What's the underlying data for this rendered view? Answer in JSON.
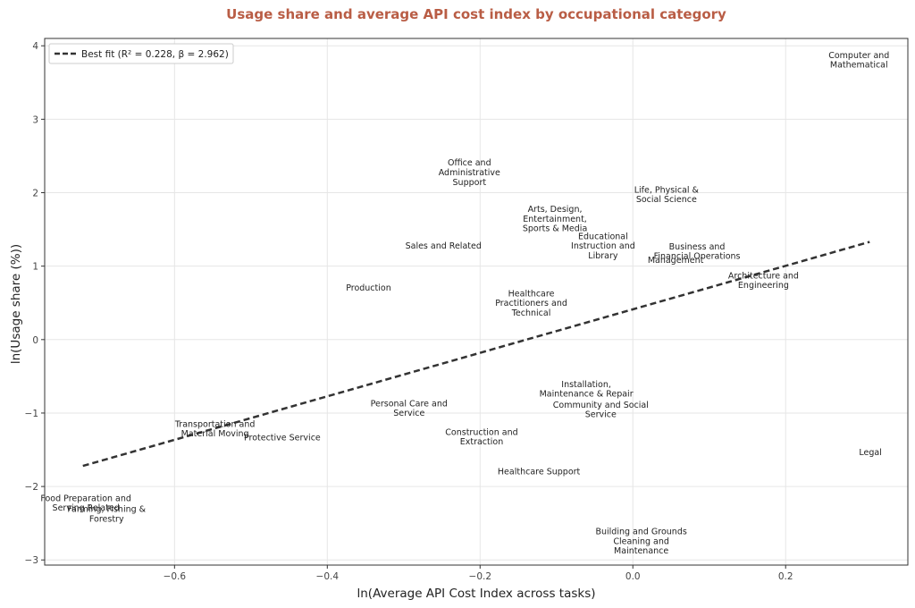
{
  "chart_data": {
    "type": "scatter",
    "title": "Usage share and average API cost index by occupational category",
    "xlabel": "ln(Average API Cost Index across tasks)",
    "ylabel": "ln(Usage share (%))",
    "xlim": [
      -0.77,
      0.36
    ],
    "ylim": [
      -3.07,
      4.1
    ],
    "xticks": [
      -0.6,
      -0.4,
      -0.2,
      0.0,
      0.2
    ],
    "xtick_labels": [
      "−0.6",
      "−0.4",
      "−0.2",
      "0.0",
      "0.2"
    ],
    "yticks": [
      -3,
      -2,
      -1,
      0,
      1,
      2,
      3,
      4
    ],
    "ytick_labels": [
      "−3",
      "−2",
      "−1",
      "0",
      "1",
      "2",
      "3",
      "4"
    ],
    "grid": true,
    "legend_position": "top-left",
    "fit_line": {
      "label": "Best fit (R² = 0.228, β = 2.962)",
      "x": [
        -0.72,
        0.31
      ],
      "y": [
        -1.72,
        1.33
      ]
    },
    "points": [
      {
        "label": [
          "Computer and",
          "Mathematical"
        ],
        "x": 0.296,
        "y": 3.81
      },
      {
        "label": [
          "Office and",
          "Administrative",
          "Support"
        ],
        "x": -0.214,
        "y": 2.28
      },
      {
        "label": [
          "Life, Physical &",
          "Social Science"
        ],
        "x": 0.044,
        "y": 1.98
      },
      {
        "label": [
          "Arts, Design,",
          "Entertainment,",
          "Sports & Media"
        ],
        "x": -0.102,
        "y": 1.65
      },
      {
        "label": [
          "Sales and Related"
        ],
        "x": -0.248,
        "y": 1.28
      },
      {
        "label": [
          "Educational",
          "Instruction and",
          "Library"
        ],
        "x": -0.039,
        "y": 1.28
      },
      {
        "label": [
          "Business and"
        ],
        "x": 0.084,
        "y": 1.27
      },
      {
        "label": [
          "Financial Operations"
        ],
        "x": 0.084,
        "y": 1.14
      },
      {
        "label": [
          "Management"
        ],
        "x": 0.056,
        "y": 1.09
      },
      {
        "label": [
          "Architecture and",
          "Engineering"
        ],
        "x": 0.171,
        "y": 0.81
      },
      {
        "label": [
          "Production"
        ],
        "x": -0.346,
        "y": 0.71
      },
      {
        "label": [
          "Healthcare",
          "Practitioners and",
          "Technical"
        ],
        "x": -0.133,
        "y": 0.5
      },
      {
        "label": [
          "Installation,",
          "Maintenance & Repair"
        ],
        "x": -0.061,
        "y": -0.67
      },
      {
        "label": [
          "Community and Social",
          "Service"
        ],
        "x": -0.042,
        "y": -0.95
      },
      {
        "label": [
          "Personal Care and",
          "Service"
        ],
        "x": -0.293,
        "y": -0.93
      },
      {
        "label": [
          "Transportation and",
          "Material Moving"
        ],
        "x": -0.547,
        "y": -1.21
      },
      {
        "label": [
          "Protective Service"
        ],
        "x": -0.459,
        "y": -1.33
      },
      {
        "label": [
          "Construction and",
          "Extraction"
        ],
        "x": -0.198,
        "y": -1.32
      },
      {
        "label": [
          "Legal"
        ],
        "x": 0.311,
        "y": -1.53
      },
      {
        "label": [
          "Healthcare Support"
        ],
        "x": -0.123,
        "y": -1.79
      },
      {
        "label": [
          "Food Preparation and",
          "Serving Related"
        ],
        "x": -0.716,
        "y": -2.22
      },
      {
        "label": [
          "Farming, Fishing &",
          "Forestry"
        ],
        "x": -0.689,
        "y": -2.37
      },
      {
        "label": [
          "Building and Grounds",
          "Cleaning and",
          "Maintenance"
        ],
        "x": 0.011,
        "y": -2.74
      }
    ]
  },
  "colors": {
    "title": "#b95d45",
    "axes": "#333333",
    "grid": "#e6e6e6",
    "fit_line": "#333333",
    "text": "#222222",
    "tick": "#444444"
  }
}
